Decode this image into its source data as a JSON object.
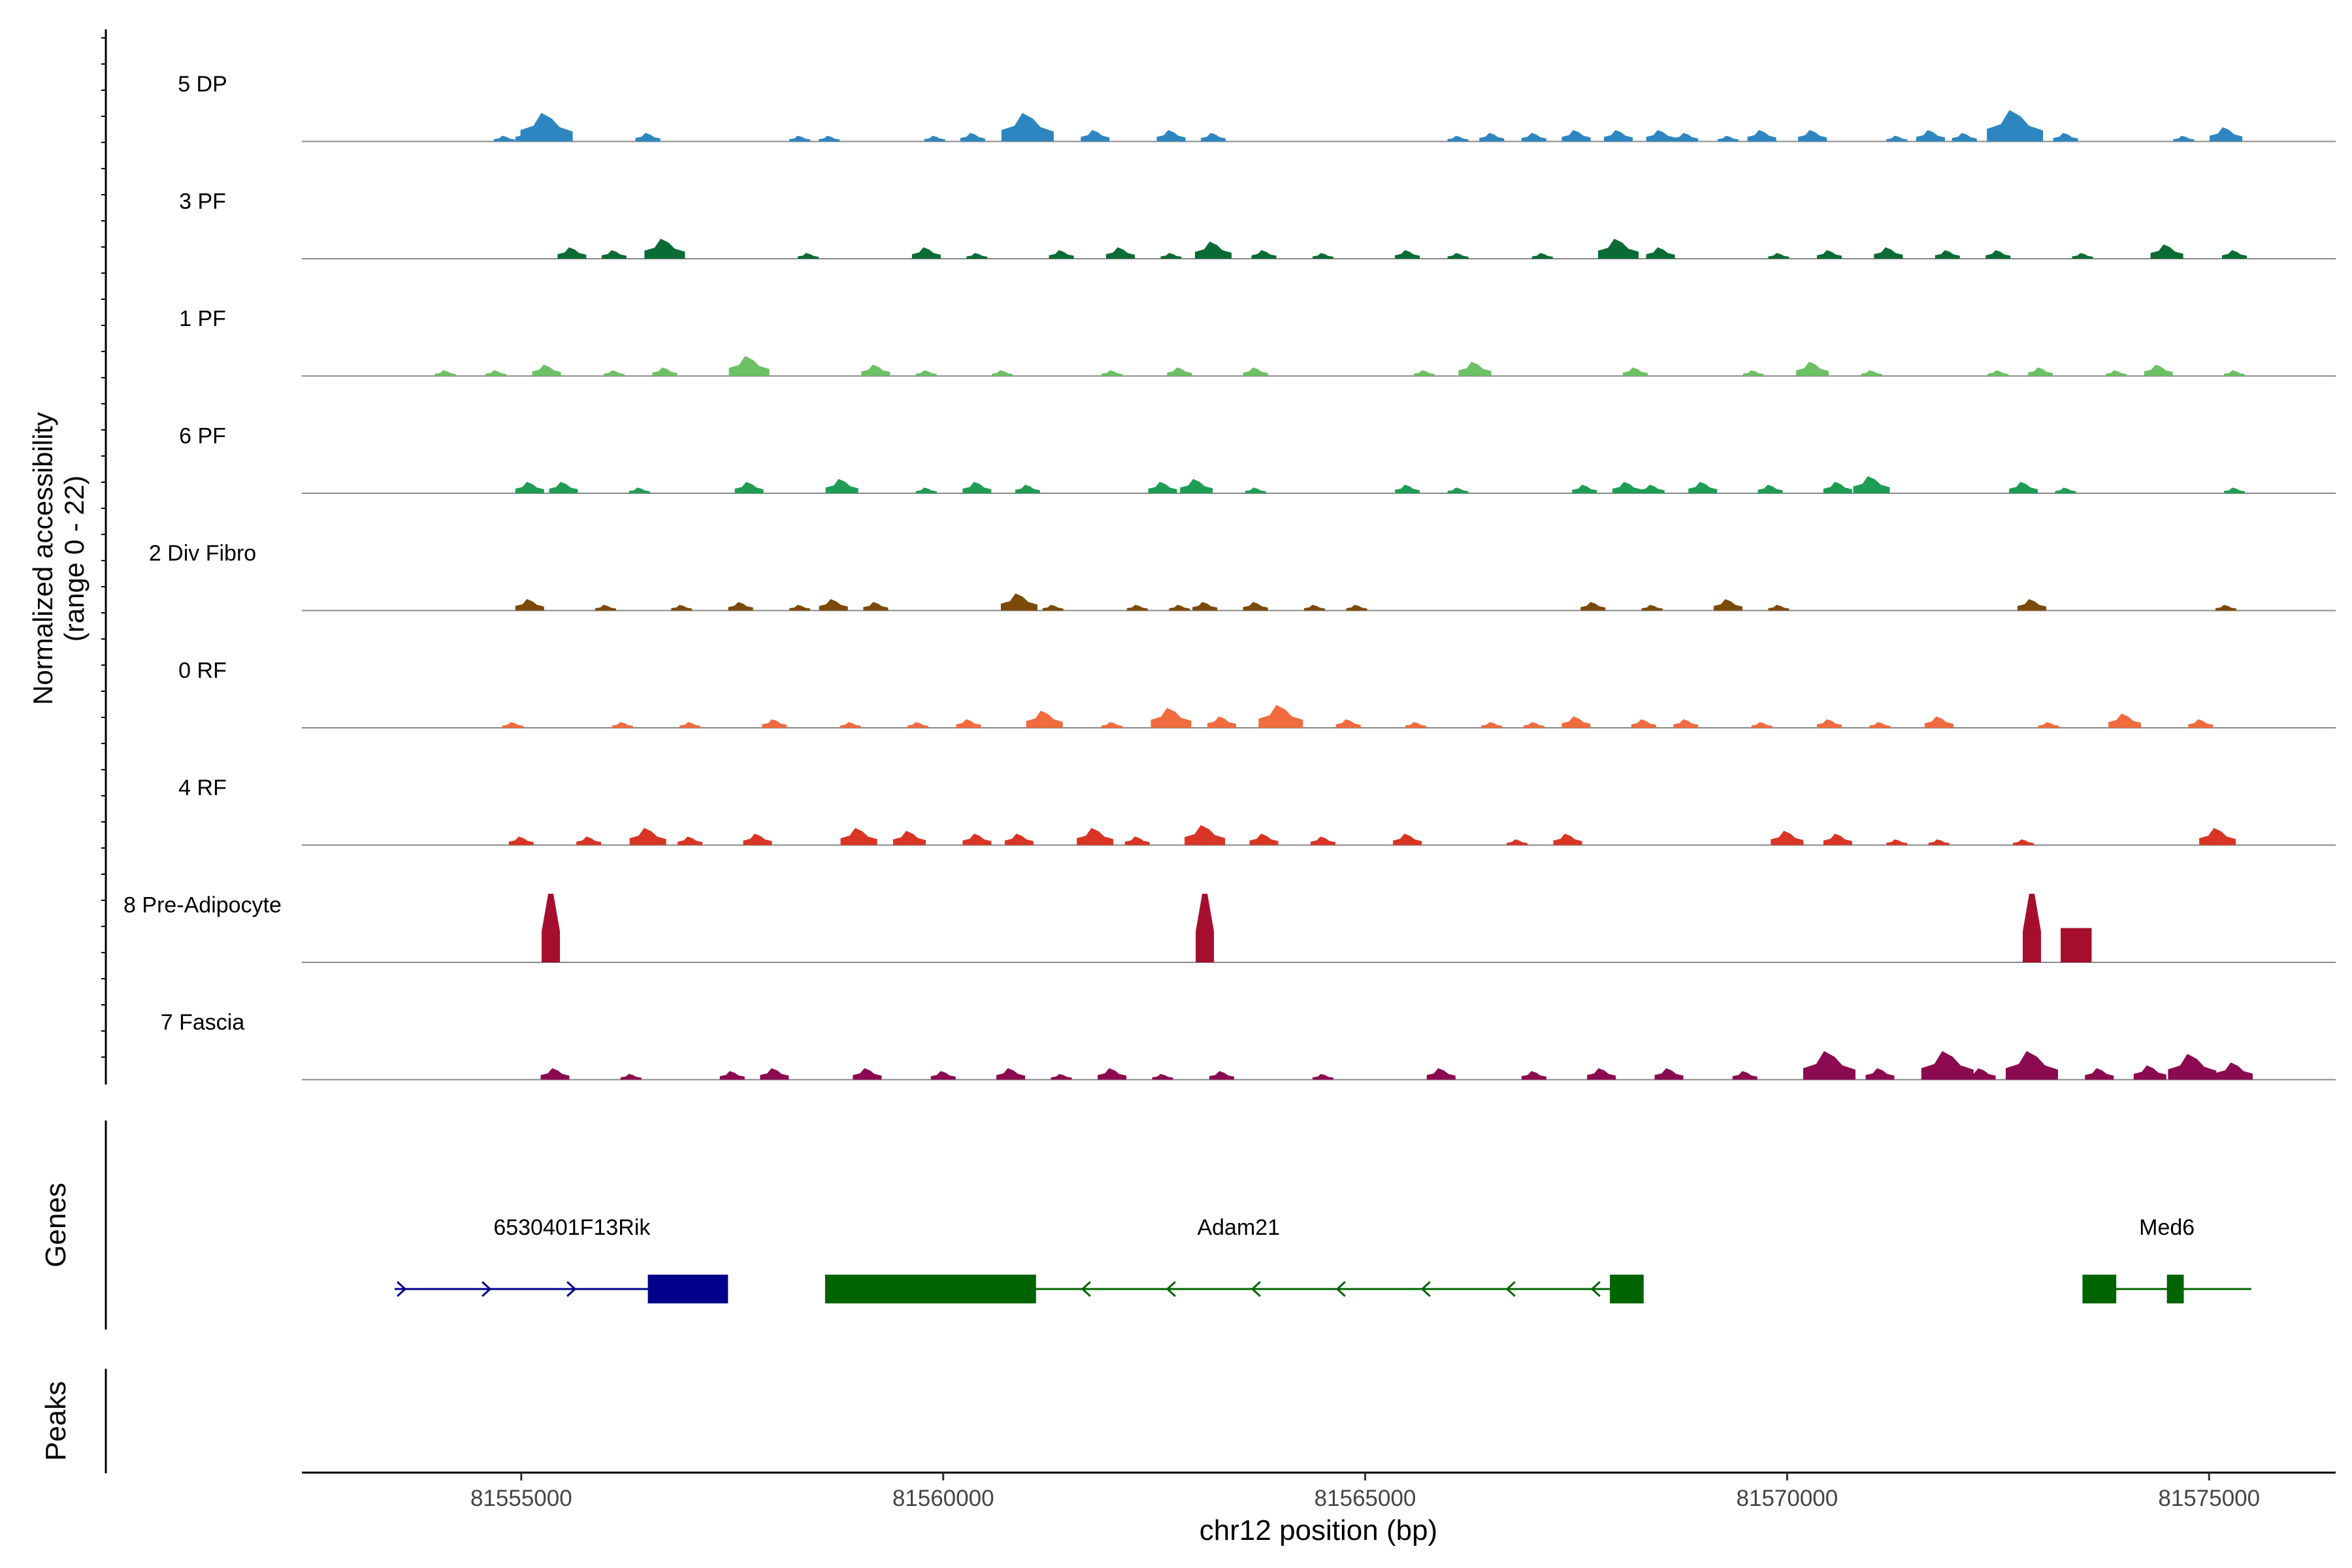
{
  "chart_data": {
    "type": "area",
    "title": "",
    "xlabel": "chr12 position (bp)",
    "ylabel": "Normalized accessibility\n(range 0 - 22)",
    "ylim": [
      0,
      22
    ],
    "xlim": [
      81552400,
      81576500
    ],
    "xticks": [
      81555000,
      81560000,
      81565000,
      81570000,
      81575000
    ],
    "xtick_labels": [
      "81555000",
      "81560000",
      "81565000",
      "81570000",
      "81575000"
    ],
    "panels": {
      "genes_label": "Genes",
      "peaks_label": "Peaks"
    },
    "series": [
      {
        "name": "5 DP",
        "color": "#2E86C1",
        "peaks": [
          [
            81554800,
            1
          ],
          [
            81555100,
            2
          ],
          [
            81555300,
            5
          ],
          [
            81556500,
            1.5
          ],
          [
            81558300,
            1
          ],
          [
            81558650,
            1
          ],
          [
            81559900,
            1
          ],
          [
            81560350,
            1.5
          ],
          [
            81561000,
            5
          ],
          [
            81561800,
            2
          ],
          [
            81562700,
            2
          ],
          [
            81563200,
            1.5
          ],
          [
            81566100,
            1
          ],
          [
            81566500,
            1.5
          ],
          [
            81567000,
            1.5
          ],
          [
            81567500,
            2
          ],
          [
            81568000,
            2
          ],
          [
            81568500,
            2
          ],
          [
            81568800,
            1.5
          ],
          [
            81569300,
            1
          ],
          [
            81569700,
            2
          ],
          [
            81570300,
            2
          ],
          [
            81571300,
            1
          ],
          [
            81571700,
            2
          ],
          [
            81572100,
            1.5
          ],
          [
            81572700,
            5.5
          ],
          [
            81573300,
            1.5
          ],
          [
            81574700,
            1
          ],
          [
            81575200,
            2.5
          ]
        ]
      },
      {
        "name": "3 PF",
        "color": "#0B6B35",
        "peaks": [
          [
            81555600,
            2
          ],
          [
            81556100,
            1.5
          ],
          [
            81556700,
            3.5
          ],
          [
            81558400,
            1
          ],
          [
            81559800,
            2
          ],
          [
            81560400,
            1
          ],
          [
            81561400,
            1.5
          ],
          [
            81562100,
            2
          ],
          [
            81562700,
            1
          ],
          [
            81563200,
            3
          ],
          [
            81563800,
            1.5
          ],
          [
            81564500,
            1
          ],
          [
            81565500,
            1.5
          ],
          [
            81566100,
            1
          ],
          [
            81567100,
            1
          ],
          [
            81568000,
            3.5
          ],
          [
            81568500,
            2
          ],
          [
            81569900,
            1
          ],
          [
            81570500,
            1.5
          ],
          [
            81571200,
            2
          ],
          [
            81571900,
            1.5
          ],
          [
            81572500,
            1.5
          ],
          [
            81573500,
            1
          ],
          [
            81574500,
            2.5
          ],
          [
            81575300,
            1.5
          ]
        ]
      },
      {
        "name": "1 PF",
        "color": "#6CC165",
        "peaks": [
          [
            81554100,
            1
          ],
          [
            81554700,
            1
          ],
          [
            81555300,
            2
          ],
          [
            81556100,
            1
          ],
          [
            81556700,
            1.5
          ],
          [
            81557700,
            3.5
          ],
          [
            81559200,
            2
          ],
          [
            81559800,
            1
          ],
          [
            81560700,
            1
          ],
          [
            81562000,
            1
          ],
          [
            81562800,
            1.5
          ],
          [
            81563700,
            1.5
          ],
          [
            81565700,
            1
          ],
          [
            81566300,
            2.5
          ],
          [
            81568200,
            1.5
          ],
          [
            81569600,
            1
          ],
          [
            81570300,
            2.5
          ],
          [
            81571000,
            1
          ],
          [
            81572500,
            1
          ],
          [
            81573000,
            1.5
          ],
          [
            81573900,
            1
          ],
          [
            81574400,
            2
          ],
          [
            81575300,
            1
          ]
        ]
      },
      {
        "name": "6 PF",
        "color": "#1F9D55",
        "peaks": [
          [
            81555100,
            2
          ],
          [
            81555500,
            2
          ],
          [
            81556400,
            1
          ],
          [
            81557700,
            2
          ],
          [
            81558800,
            2.5
          ],
          [
            81559800,
            1
          ],
          [
            81560400,
            2
          ],
          [
            81561000,
            1.5
          ],
          [
            81562600,
            2
          ],
          [
            81563000,
            2.5
          ],
          [
            81563700,
            1
          ],
          [
            81565500,
            1.5
          ],
          [
            81566100,
            1
          ],
          [
            81567600,
            1.5
          ],
          [
            81568100,
            2
          ],
          [
            81568400,
            1.5
          ],
          [
            81569000,
            2
          ],
          [
            81569800,
            1.5
          ],
          [
            81570600,
            2
          ],
          [
            81571000,
            3
          ],
          [
            81572800,
            2
          ],
          [
            81573300,
            1
          ],
          [
            81575300,
            1
          ]
        ]
      },
      {
        "name": "2 Div Fibro",
        "color": "#7B4A08",
        "peaks": [
          [
            81555100,
            2
          ],
          [
            81556000,
            1
          ],
          [
            81556900,
            1
          ],
          [
            81557600,
            1.5
          ],
          [
            81558300,
            1
          ],
          [
            81558700,
            2
          ],
          [
            81559200,
            1.5
          ],
          [
            81560900,
            3
          ],
          [
            81561300,
            1
          ],
          [
            81562300,
            1
          ],
          [
            81562800,
            1
          ],
          [
            81563100,
            1.5
          ],
          [
            81563700,
            1.5
          ],
          [
            81564400,
            1
          ],
          [
            81564900,
            1
          ],
          [
            81567700,
            1.5
          ],
          [
            81568400,
            1
          ],
          [
            81569300,
            2
          ],
          [
            81569900,
            1
          ],
          [
            81572900,
            2
          ],
          [
            81575200,
            1
          ]
        ]
      },
      {
        "name": "0 RF",
        "color": "#F06B3E",
        "peaks": [
          [
            81554900,
            1
          ],
          [
            81556200,
            1
          ],
          [
            81557000,
            1
          ],
          [
            81558000,
            1.5
          ],
          [
            81558900,
            1
          ],
          [
            81559700,
            1
          ],
          [
            81560300,
            1.5
          ],
          [
            81561200,
            3
          ],
          [
            81562000,
            1
          ],
          [
            81562700,
            3.5
          ],
          [
            81563300,
            2
          ],
          [
            81564000,
            4
          ],
          [
            81564800,
            1.5
          ],
          [
            81565600,
            1
          ],
          [
            81566500,
            1
          ],
          [
            81567000,
            1
          ],
          [
            81567500,
            2
          ],
          [
            81568300,
            1.5
          ],
          [
            81568800,
            1.5
          ],
          [
            81569700,
            1
          ],
          [
            81570500,
            1.5
          ],
          [
            81571100,
            1
          ],
          [
            81571800,
            2
          ],
          [
            81573100,
            1
          ],
          [
            81574000,
            2.5
          ],
          [
            81574900,
            1.5
          ]
        ]
      },
      {
        "name": "4 RF",
        "color": "#D83525",
        "peaks": [
          [
            81555000,
            1.5
          ],
          [
            81555800,
            1.5
          ],
          [
            81556500,
            3
          ],
          [
            81557000,
            1.5
          ],
          [
            81557800,
            2
          ],
          [
            81559000,
            3
          ],
          [
            81559600,
            2.5
          ],
          [
            81560400,
            2
          ],
          [
            81560900,
            2
          ],
          [
            81561800,
            3
          ],
          [
            81562300,
            1.5
          ],
          [
            81563100,
            3.5
          ],
          [
            81563800,
            2
          ],
          [
            81564500,
            1.5
          ],
          [
            81565500,
            2
          ],
          [
            81566800,
            1
          ],
          [
            81567400,
            2
          ],
          [
            81570000,
            2.5
          ],
          [
            81570600,
            2
          ],
          [
            81571300,
            1
          ],
          [
            81571800,
            1
          ],
          [
            81572800,
            1
          ],
          [
            81575100,
            3
          ]
        ]
      },
      {
        "name": "8 Pre-Adipocyte",
        "color": "#A50F2D",
        "peaks": [
          [
            81555350,
            12
          ],
          [
            81563100,
            12
          ],
          [
            81572900,
            12
          ],
          [
            81573350,
            6
          ],
          [
            81573500,
            6
          ]
        ]
      },
      {
        "name": "7 Fascia",
        "color": "#8B0A50",
        "peaks": [
          [
            81555400,
            2
          ],
          [
            81556300,
            1
          ],
          [
            81557500,
            1.5
          ],
          [
            81558000,
            2
          ],
          [
            81559100,
            2
          ],
          [
            81560000,
            1.5
          ],
          [
            81560800,
            2
          ],
          [
            81561400,
            1
          ],
          [
            81562000,
            2
          ],
          [
            81562600,
            1
          ],
          [
            81563300,
            1.5
          ],
          [
            81564500,
            1
          ],
          [
            81565900,
            2
          ],
          [
            81567000,
            1.5
          ],
          [
            81567800,
            2
          ],
          [
            81568600,
            2
          ],
          [
            81569500,
            1.5
          ],
          [
            81570500,
            5
          ],
          [
            81571100,
            2
          ],
          [
            81571900,
            5
          ],
          [
            81572300,
            2
          ],
          [
            81572900,
            5
          ],
          [
            81573700,
            2
          ],
          [
            81574300,
            2.5
          ],
          [
            81574800,
            4.5
          ],
          [
            81575300,
            3
          ]
        ]
      }
    ],
    "genes": [
      {
        "name": "6530401F13Rik",
        "start": 81553500,
        "end": 81557450,
        "strand": "+",
        "color": "#00008B",
        "exons": [
          [
            81556500,
            81557450
          ]
        ]
      },
      {
        "name": "Adam21",
        "start": 81558600,
        "end": 81568300,
        "strand": "-",
        "color": "#006400",
        "exons": [
          [
            81558600,
            81561100
          ],
          [
            81567900,
            81568300
          ]
        ]
      },
      {
        "name": "Med6",
        "start": 81573500,
        "end": 81575500,
        "strand": "+",
        "color": "#006400",
        "exons": [
          [
            81573500,
            81573900
          ],
          [
            81574500,
            81574700
          ]
        ]
      }
    ]
  }
}
